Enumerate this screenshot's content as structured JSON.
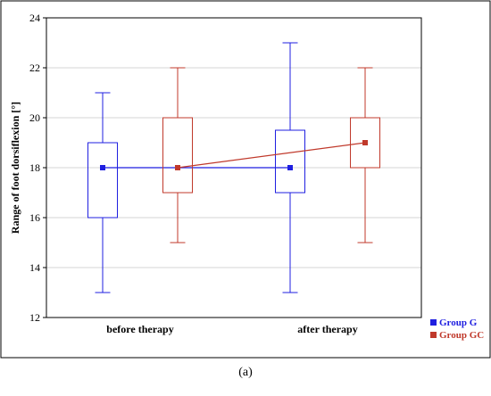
{
  "caption": "(a)",
  "chart_data": {
    "type": "box",
    "title": "",
    "xlabel": "",
    "ylabel": "Range of foot dorsiflexion [°]",
    "ylim": [
      12,
      24
    ],
    "yticks": [
      12,
      14,
      16,
      18,
      20,
      22,
      24
    ],
    "grid": true,
    "legend_position": "bottom-right",
    "categories": [
      "before therapy",
      "after therapy"
    ],
    "series": [
      {
        "name": "Group G",
        "color": "#1f1fe0",
        "boxes": [
          {
            "category": "before therapy",
            "min": 13,
            "q1": 16,
            "median": 18,
            "q3": 19,
            "max": 21
          },
          {
            "category": "after therapy",
            "min": 13,
            "q1": 17,
            "median": 18,
            "q3": 19.5,
            "max": 23
          }
        ]
      },
      {
        "name": "Group GC",
        "color": "#c0392b",
        "boxes": [
          {
            "category": "before therapy",
            "min": 15,
            "q1": 17,
            "median": 18,
            "q3": 20,
            "max": 22
          },
          {
            "category": "after therapy",
            "min": 15,
            "q1": 18,
            "median": 19,
            "q3": 20,
            "max": 22
          }
        ]
      }
    ]
  }
}
